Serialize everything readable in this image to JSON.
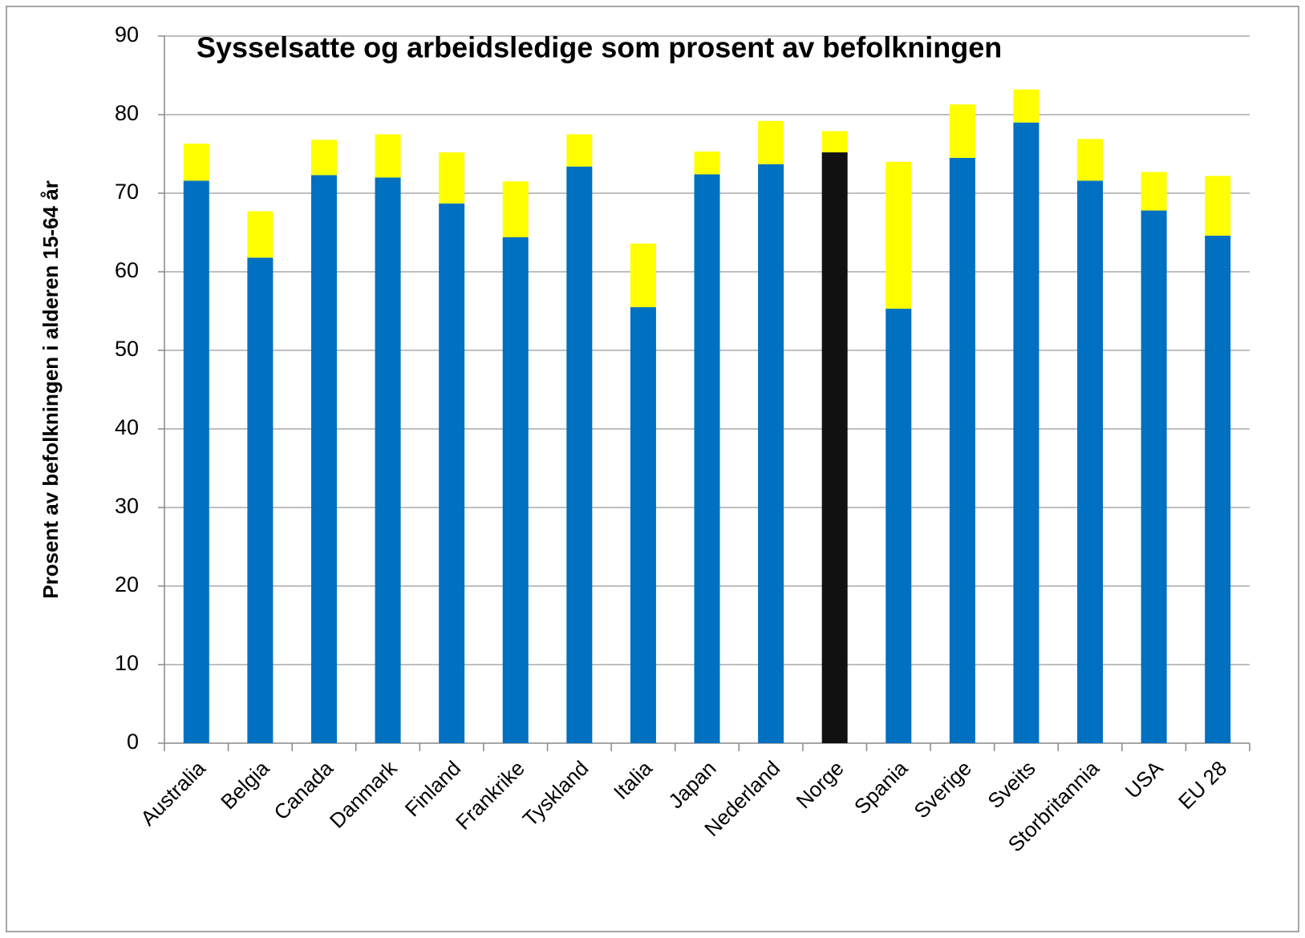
{
  "chart_data": {
    "type": "stacked_bar",
    "title": "Sysselsatte og arbeidsledige som prosent av befolkningen",
    "y_label": "Prosent av befolkningen i alderen 15-64 år",
    "categories": [
      "Australia",
      "Belgia",
      "Canada",
      "Danmark",
      "Finland",
      "Frankrike",
      "Tyskland",
      "Italia",
      "Japan",
      "Nederland",
      "Norge",
      "Spania",
      "Sverige",
      "Sveits",
      "Storbritannia",
      "USA",
      "EU 28"
    ],
    "series": [
      {
        "color": "#0070c0",
        "colors": [
          "#0070c0",
          "#0070c0",
          "#0070c0",
          "#0070c0",
          "#0070c0",
          "#0070c0",
          "#0070c0",
          "#0070c0",
          "#0070c0",
          "#0070c0",
          "#111111",
          "#0070c0",
          "#0070c0",
          "#0070c0",
          "#0070c0",
          "#0070c0",
          "#0070c0"
        ],
        "values": [
          71.6,
          61.8,
          72.3,
          72.0,
          68.7,
          64.4,
          73.4,
          55.5,
          72.4,
          73.7,
          75.2,
          55.3,
          74.5,
          79.0,
          71.6,
          67.8,
          64.6
        ]
      },
      {
        "color": "#ffff00",
        "values": [
          4.7,
          5.9,
          4.5,
          5.5,
          6.5,
          7.1,
          4.1,
          8.1,
          2.9,
          5.5,
          2.7,
          18.7,
          6.8,
          4.2,
          5.3,
          4.9,
          7.6
        ]
      }
    ],
    "ylim": [
      0,
      90
    ],
    "yticks": [
      0,
      10,
      20,
      30,
      40,
      50,
      60,
      70,
      80,
      90
    ],
    "grid": true
  }
}
